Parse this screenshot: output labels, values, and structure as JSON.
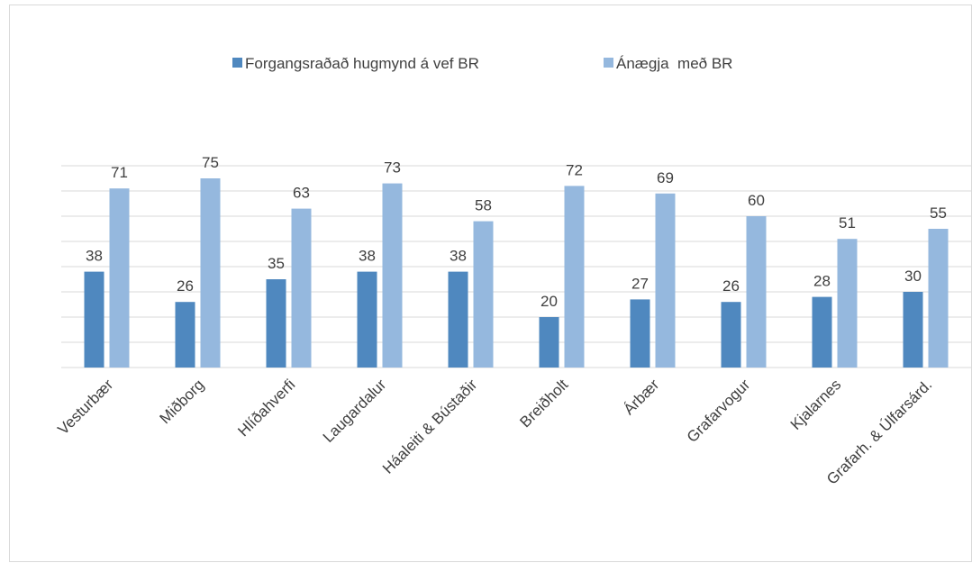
{
  "chart_data": {
    "type": "bar",
    "categories": [
      "Vesturbær",
      "Miðborg",
      "Hlíðahverfi",
      "Laugardalur",
      "Háaleiti & Bústaðir",
      "Breiðholt",
      "Árbær",
      "Grafarvogur",
      "Kjalarnes",
      "Grafarh. & Úlfarsárd."
    ],
    "series": [
      {
        "name": "Forgangsraðað hugmynd á vef BR",
        "color": "#4f88bf",
        "values": [
          38,
          26,
          35,
          38,
          38,
          20,
          27,
          26,
          28,
          30
        ]
      },
      {
        "name": "Ánægja  með BR",
        "color": "#95b8de",
        "values": [
          71,
          75,
          63,
          73,
          58,
          72,
          69,
          60,
          51,
          55
        ]
      }
    ],
    "ylim": [
      0,
      80
    ],
    "yticks": [
      0,
      10,
      20,
      30,
      40,
      50,
      60,
      70,
      80
    ],
    "grid": true,
    "legend": "top"
  }
}
